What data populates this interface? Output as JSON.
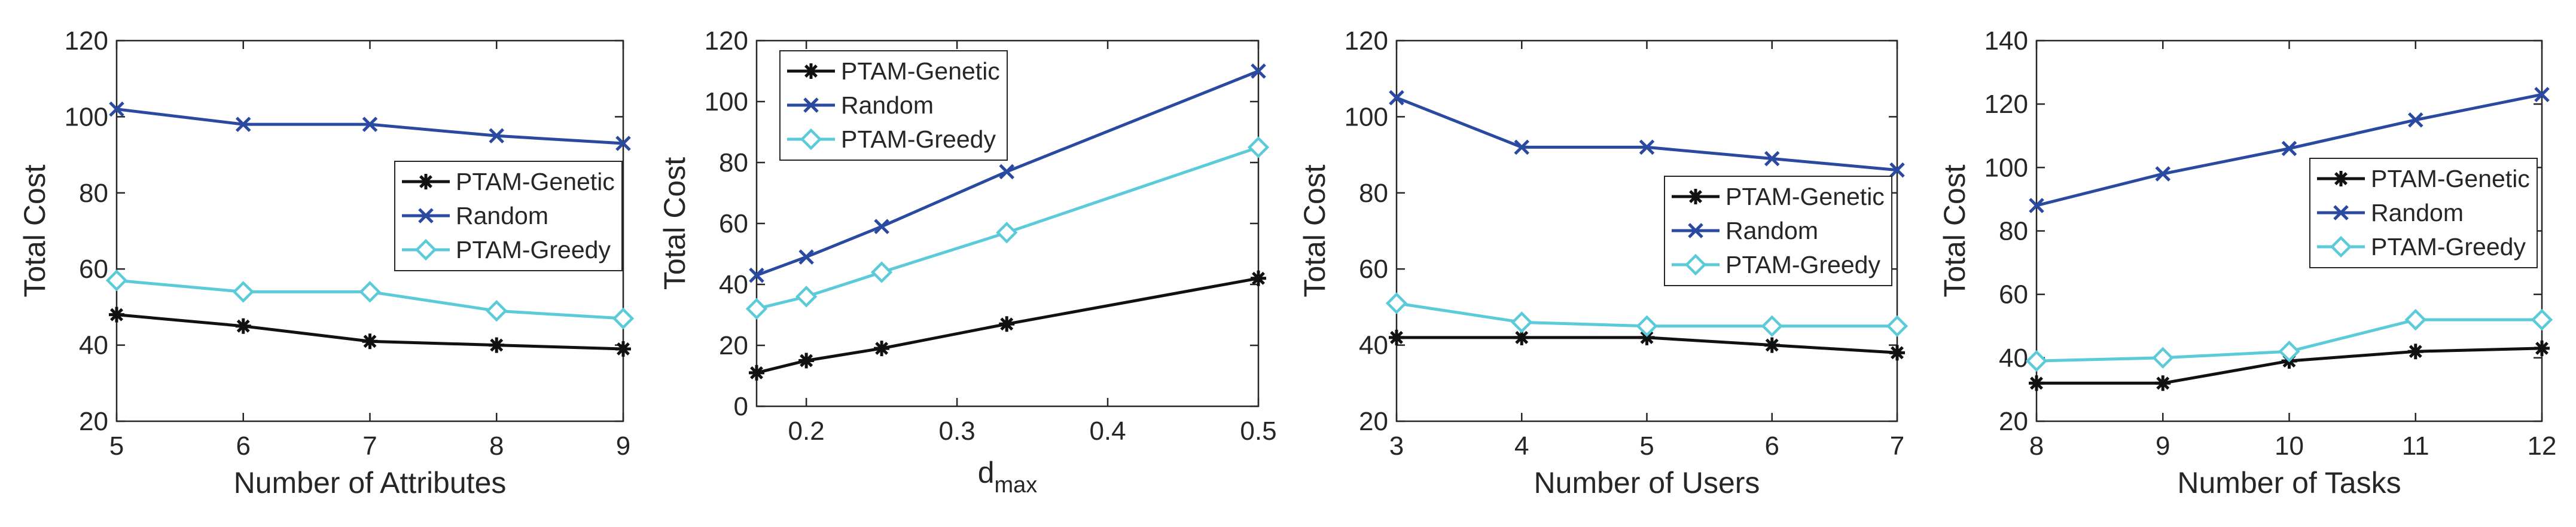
{
  "colors": {
    "genetic": "#111111",
    "random": "#2a49a0",
    "greedy": "#5ccbd9",
    "axis": "#262626"
  },
  "chart_data": [
    {
      "type": "line",
      "title": "",
      "xlabel": "Number of Attributes",
      "ylabel": "Total Cost",
      "x": [
        5,
        6,
        7,
        8,
        9
      ],
      "xticks": [
        "5",
        "6",
        "7",
        "8",
        "9"
      ],
      "xlim": [
        5,
        9
      ],
      "ylim": [
        20,
        120
      ],
      "yticks": [
        "20",
        "40",
        "60",
        "80",
        "100",
        "120"
      ],
      "legend_position": "center-right",
      "series": [
        {
          "name": "PTAM-Genetic",
          "values": [
            48,
            45,
            41,
            40,
            39
          ]
        },
        {
          "name": "Random",
          "values": [
            102,
            98,
            98,
            95,
            93
          ]
        },
        {
          "name": "PTAM-Greedy",
          "values": [
            57,
            54,
            54,
            49,
            47
          ]
        }
      ]
    },
    {
      "type": "line",
      "title": "",
      "xlabel": "d",
      "xlabel_sub": "max",
      "ylabel": "Total Cost",
      "x": [
        0.167,
        0.2,
        0.25,
        0.333,
        0.5
      ],
      "xticks": [
        "0.2",
        "0.3",
        "0.4",
        "0.5"
      ],
      "xtick_values": [
        0.2,
        0.3,
        0.4,
        0.5
      ],
      "xlim": [
        0.167,
        0.5
      ],
      "ylim": [
        0,
        120
      ],
      "yticks": [
        "0",
        "20",
        "40",
        "60",
        "80",
        "100",
        "120"
      ],
      "legend_position": "top-left",
      "series": [
        {
          "name": "PTAM-Genetic",
          "values": [
            11,
            15,
            19,
            27,
            42
          ]
        },
        {
          "name": "Random",
          "values": [
            43,
            49,
            59,
            77,
            110
          ]
        },
        {
          "name": "PTAM-Greedy",
          "values": [
            32,
            36,
            44,
            57,
            85
          ]
        }
      ]
    },
    {
      "type": "line",
      "title": "",
      "xlabel": "Number of Users",
      "ylabel": "Total Cost",
      "x": [
        3,
        4,
        5,
        6,
        7
      ],
      "xticks": [
        "3",
        "4",
        "5",
        "6",
        "7"
      ],
      "xlim": [
        3,
        7
      ],
      "ylim": [
        20,
        120
      ],
      "yticks": [
        "20",
        "40",
        "60",
        "80",
        "100",
        "120"
      ],
      "legend_position": "center-right",
      "series": [
        {
          "name": "PTAM-Genetic",
          "values": [
            42,
            42,
            42,
            40,
            38
          ]
        },
        {
          "name": "Random",
          "values": [
            105,
            92,
            92,
            89,
            86
          ]
        },
        {
          "name": "PTAM-Greedy",
          "values": [
            51,
            46,
            45,
            45,
            45
          ]
        }
      ]
    },
    {
      "type": "line",
      "title": "",
      "xlabel": "Number of Tasks",
      "ylabel": "Total Cost",
      "x": [
        8,
        9,
        10,
        11,
        12
      ],
      "xticks": [
        "8",
        "9",
        "10",
        "11",
        "12"
      ],
      "xlim": [
        8,
        12
      ],
      "ylim": [
        20,
        140
      ],
      "yticks": [
        "20",
        "40",
        "60",
        "80",
        "100",
        "120",
        "140"
      ],
      "legend_position": "center-right",
      "series": [
        {
          "name": "PTAM-Genetic",
          "values": [
            32,
            32,
            39,
            42,
            43
          ]
        },
        {
          "name": "Random",
          "values": [
            88,
            98,
            106,
            115,
            123
          ]
        },
        {
          "name": "PTAM-Greedy",
          "values": [
            39,
            40,
            42,
            52,
            52
          ]
        }
      ]
    }
  ]
}
